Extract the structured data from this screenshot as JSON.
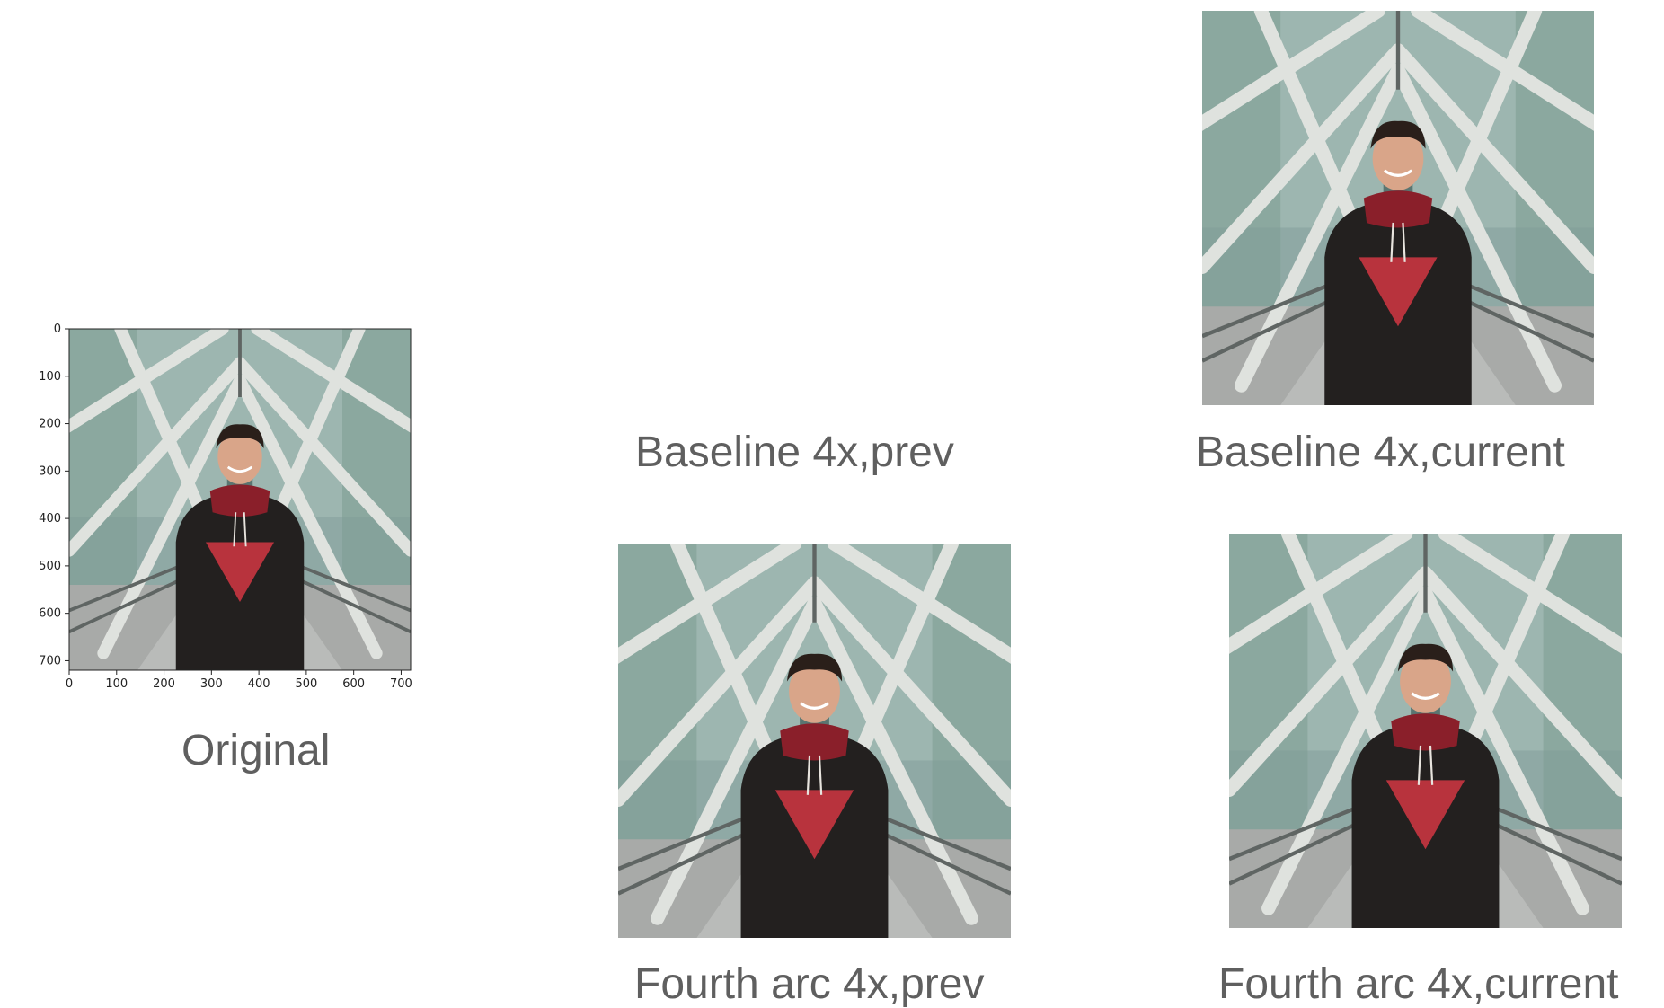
{
  "captions": {
    "original": "Original",
    "baseline_prev": "Baseline 4x,prev",
    "baseline_current": "Baseline 4x,current",
    "fourth_prev": "Fourth arc 4x,prev",
    "fourth_current": "Fourth arc 4x,current"
  },
  "original_axes": {
    "y_ticks": [
      "0",
      "100",
      "200",
      "300",
      "400",
      "500",
      "600",
      "700"
    ],
    "x_ticks": [
      "0",
      "100",
      "200",
      "300",
      "400",
      "500",
      "600",
      "700"
    ]
  },
  "colors": {
    "background": "#ffffff",
    "caption": "#5f5f5f",
    "hoodie": "#23201f",
    "hood": "#8a1f2a",
    "triangle": "#b8333d",
    "girders": "#d9dcd8",
    "glass": "#8fa9a5",
    "floor": "#a8aaa8"
  }
}
